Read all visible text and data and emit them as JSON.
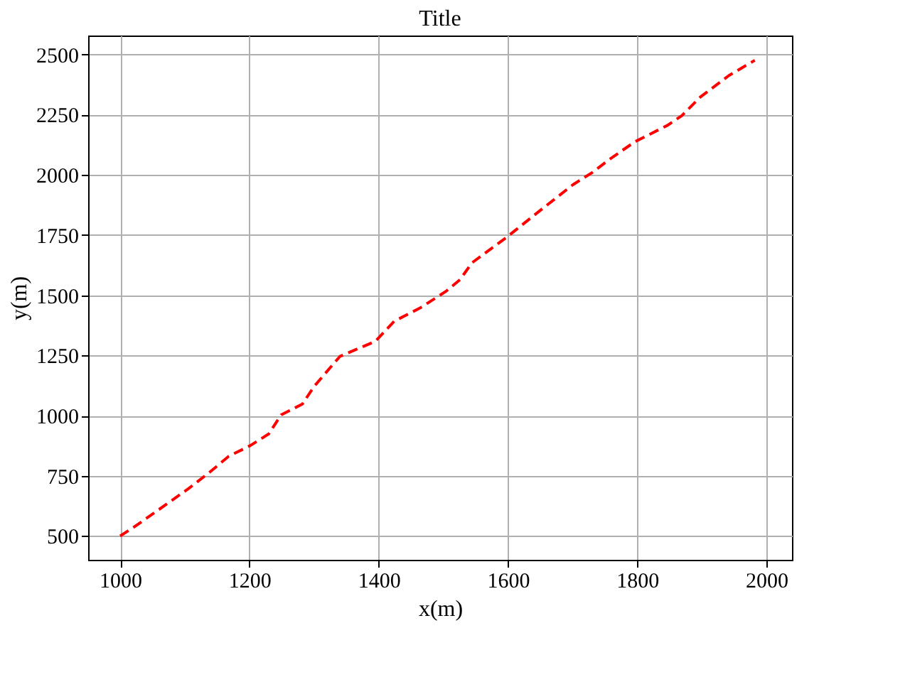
{
  "chart_data": {
    "type": "line",
    "title": "Title",
    "xlabel": "x(m)",
    "ylabel": "y(m)",
    "xlim": [
      950.5,
      2039.5
    ],
    "ylim": [
      401,
      2579
    ],
    "xticks": [
      1000,
      1200,
      1400,
      1600,
      1800,
      2000
    ],
    "yticks": [
      500,
      750,
      1000,
      1250,
      1500,
      1750,
      2000,
      2250,
      2500
    ],
    "grid": true,
    "line_style": "dashed",
    "series": [
      {
        "color": "#ff0000",
        "x": [
          1000,
          1023,
          1059,
          1106,
          1139,
          1168,
          1201,
          1230,
          1249,
          1282,
          1300,
          1340,
          1395,
          1424,
          1464,
          1504,
          1526,
          1544,
          1599,
          1654,
          1701,
          1730,
          1759,
          1796,
          1847,
          1869,
          1898,
          1942,
          1982
        ],
        "values": [
          500,
          540,
          608,
          697,
          766,
          831,
          875,
          924,
          1003,
          1048,
          1121,
          1246,
          1309,
          1392,
          1447,
          1516,
          1565,
          1634,
          1743,
          1861,
          1960,
          2009,
          2068,
          2137,
          2206,
          2246,
          2324,
          2413,
          2476
        ]
      }
    ]
  }
}
